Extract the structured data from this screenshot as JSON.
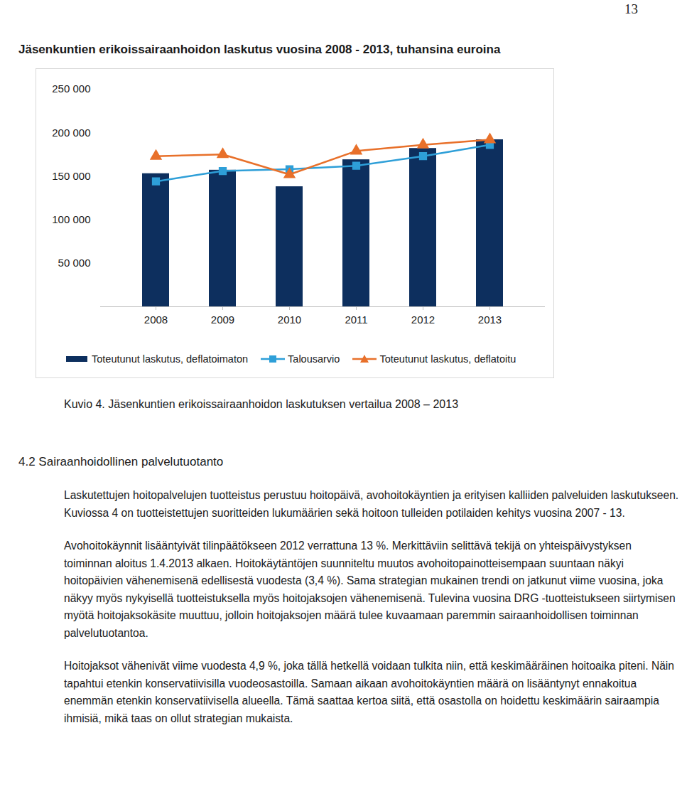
{
  "page_number": "13",
  "title": "Jäsenkuntien erikoissairaanhoidon laskutus vuosina 2008 - 2013, tuhansina euroina",
  "chart_data": {
    "type": "bar",
    "categories": [
      "2008",
      "2009",
      "2010",
      "2011",
      "2012",
      "2013"
    ],
    "series": [
      {
        "name": "Toteutunut laskutus, deflatoimaton",
        "type": "bar",
        "color": "#0d2f5e",
        "values": [
          153000,
          157000,
          138000,
          169000,
          182000,
          192000
        ]
      },
      {
        "name": "Talousarvio",
        "type": "line",
        "marker": "square",
        "color": "#2e9fd8",
        "values": [
          144000,
          156000,
          158000,
          162000,
          173000,
          186000
        ]
      },
      {
        "name": "Toteutunut laskutus, deflatoitu",
        "type": "line",
        "marker": "triangle",
        "color": "#e8702a",
        "values": [
          173000,
          175000,
          152000,
          179000,
          186000,
          192000
        ]
      }
    ],
    "ylim": [
      0,
      250000
    ],
    "yticks": [
      {
        "value": 50000,
        "label": "50 000"
      },
      {
        "value": 100000,
        "label": "100 000"
      },
      {
        "value": 150000,
        "label": "150 000"
      },
      {
        "value": 200000,
        "label": "200 000"
      },
      {
        "value": 250000,
        "label": "250 000"
      }
    ],
    "grid": false,
    "legend": "bottom"
  },
  "caption": "Kuvio 4. Jäsenkuntien erikoissairaanhoidon laskutuksen vertailua 2008 – 2013",
  "heading": "4.2 Sairaanhoidollinen palvelutuotanto",
  "paragraphs": [
    "Laskutettujen hoitopalvelujen tuotteistus perustuu hoitopäivä, avohoitokäyntien ja erityisen kalliiden palveluiden laskutukseen. Kuviossa 4 on tuotteistettujen suoritteiden lukumäärien sekä hoitoon tulleiden potilaiden kehitys vuosina 2007 - 13.",
    "Avohoitokäynnit lisääntyivät tilinpäätökseen 2012 verrattuna 13 %. Merkittäviin selittävä tekijä on yhteispäivystyksen toiminnan aloitus 1.4.2013 alkaen. Hoitokäytäntöjen suunniteltu muutos avohoitopainotteisempaan suuntaan näkyi hoitopäivien vähenemisenä edellisestä vuodesta (3,4 %). Sama strategian mukainen trendi on jatkunut viime vuosina, joka näkyy myös nykyisellä tuotteistuksella myös hoitojaksojen vähenemisenä. Tulevina vuosina DRG -tuotteistukseen siirtymisen myötä hoitojaksokäsite muuttuu, jolloin hoitojaksojen määrä tulee kuvaamaan paremmin sairaanhoidollisen toiminnan palvelutuotantoa.",
    "Hoitojaksot vähenivät viime vuodesta 4,9 %, joka tällä hetkellä voidaan tulkita niin, että keskimääräinen hoitoaika piteni. Näin tapahtui etenkin konservatiivisilla vuodeosastoilla. Samaan aikaan avohoitokäyntien määrä on lisääntynyt ennakoitua enemmän etenkin konservatiivisella alueella. Tämä saattaa kertoa siitä, että osastolla on hoidettu keskimäärin sairaampia ihmisiä, mikä taas on ollut strategian mukaista."
  ]
}
